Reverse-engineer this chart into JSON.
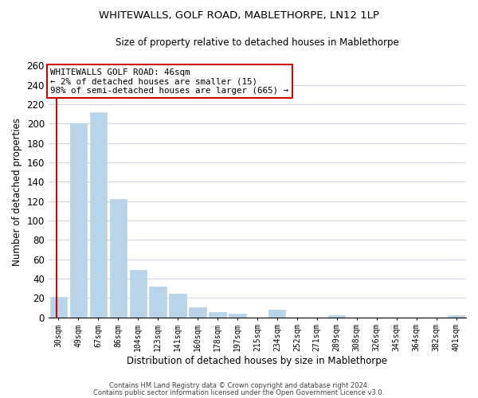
{
  "title": "WHITEWALLS, GOLF ROAD, MABLETHORPE, LN12 1LP",
  "subtitle": "Size of property relative to detached houses in Mablethorpe",
  "xlabel": "Distribution of detached houses by size in Mablethorpe",
  "ylabel": "Number of detached properties",
  "bar_labels": [
    "30sqm",
    "49sqm",
    "67sqm",
    "86sqm",
    "104sqm",
    "123sqm",
    "141sqm",
    "160sqm",
    "178sqm",
    "197sqm",
    "215sqm",
    "234sqm",
    "252sqm",
    "271sqm",
    "289sqm",
    "308sqm",
    "326sqm",
    "345sqm",
    "364sqm",
    "382sqm",
    "401sqm"
  ],
  "bar_values": [
    21,
    200,
    212,
    122,
    49,
    32,
    24,
    10,
    5,
    4,
    0,
    8,
    0,
    0,
    2,
    0,
    0,
    0,
    0,
    0,
    2
  ],
  "bar_color": "#b8d4e8",
  "highlight_edge_color": "#cc0000",
  "ylim": [
    0,
    260
  ],
  "yticks": [
    0,
    20,
    40,
    60,
    80,
    100,
    120,
    140,
    160,
    180,
    200,
    220,
    240,
    260
  ],
  "annotation_title": "WHITEWALLS GOLF ROAD: 46sqm",
  "annotation_line1": "← 2% of detached houses are smaller (15)",
  "annotation_line2": "98% of semi-detached houses are larger (665) →",
  "annotation_box_color": "#ffffff",
  "annotation_box_edge_color": "#cc0000",
  "footer_line1": "Contains HM Land Registry data © Crown copyright and database right 2024.",
  "footer_line2": "Contains public sector information licensed under the Open Government Licence v3.0.",
  "background_color": "#ffffff",
  "grid_color": "#d0d8e8"
}
